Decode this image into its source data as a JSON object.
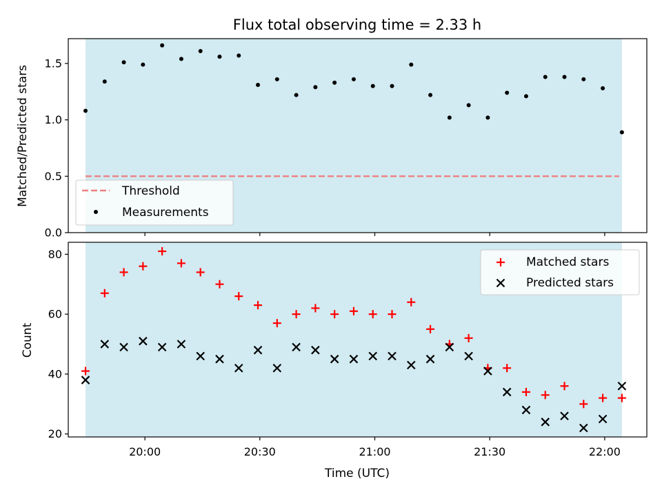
{
  "chart_data": {
    "title": "Flux total observing time = 2.33 h",
    "xlabel": "Time (UTC)",
    "shaded_color": "#add8e6",
    "x_tick_labels": [
      "20:00",
      "20:30",
      "21:00",
      "21:30",
      "22:00"
    ],
    "x_ticks": [
      "20:00",
      "20:30",
      "21:00",
      "21:30",
      "22:00"
    ],
    "xlim": [
      "19:40",
      "22:11"
    ],
    "shaded_range": [
      "19:44:30",
      "22:04:30"
    ],
    "x": [
      "19:44:30",
      "19:49:30",
      "19:54:30",
      "19:59:30",
      "20:04:30",
      "20:09:30",
      "20:14:30",
      "20:19:30",
      "20:24:30",
      "20:29:30",
      "20:34:30",
      "20:39:30",
      "20:44:30",
      "20:49:30",
      "20:54:30",
      "20:59:30",
      "21:04:30",
      "21:09:30",
      "21:14:30",
      "21:19:30",
      "21:24:30",
      "21:29:30",
      "21:34:30",
      "21:39:30",
      "21:44:30",
      "21:49:30",
      "21:54:30",
      "21:59:30",
      "22:04:30"
    ],
    "charts": [
      {
        "type": "scatter",
        "ylabel": "Matched/Predicted stars",
        "ylim": [
          0.0,
          1.72
        ],
        "y_ticks": [
          0.0,
          0.5,
          1.0,
          1.5
        ],
        "y_tick_labels": [
          "0.0",
          "0.5",
          "1.0",
          "1.5"
        ],
        "threshold": {
          "value": 0.5,
          "color": "#f08080"
        },
        "legend_position": "lower-left",
        "series": [
          {
            "name": "Measurements",
            "marker": "dot",
            "color": "#000000",
            "values": [
              1.08,
              1.34,
              1.51,
              1.49,
              1.66,
              1.54,
              1.61,
              1.56,
              1.57,
              1.31,
              1.36,
              1.22,
              1.29,
              1.33,
              1.36,
              1.3,
              1.3,
              1.49,
              1.22,
              1.02,
              1.13,
              1.02,
              1.24,
              1.21,
              1.38,
              1.38,
              1.36,
              1.28,
              0.89
            ]
          }
        ],
        "legend": [
          {
            "label": "Threshold",
            "style": "dashed-line",
            "color": "#f08080"
          },
          {
            "label": "Measurements",
            "style": "dot",
            "color": "#000000"
          }
        ]
      },
      {
        "type": "scatter",
        "ylabel": "Count",
        "ylim": [
          19,
          84
        ],
        "y_ticks": [
          20,
          40,
          60,
          80
        ],
        "y_tick_labels": [
          "20",
          "40",
          "60",
          "80"
        ],
        "legend_position": "upper-right",
        "series": [
          {
            "name": "Matched stars",
            "marker": "plus",
            "color": "#ff0000",
            "values": [
              41,
              67,
              74,
              76,
              81,
              77,
              74,
              70,
              66,
              63,
              57,
              60,
              62,
              60,
              61,
              60,
              60,
              64,
              55,
              50,
              52,
              42,
              42,
              34,
              33,
              36,
              30,
              32,
              32
            ]
          },
          {
            "name": "Predicted stars",
            "marker": "x",
            "color": "#000000",
            "values": [
              38,
              50,
              49,
              51,
              49,
              50,
              46,
              45,
              42,
              48,
              42,
              49,
              48,
              45,
              45,
              46,
              46,
              43,
              45,
              49,
              46,
              41,
              34,
              28,
              24,
              26,
              22,
              25,
              36
            ]
          }
        ]
      }
    ]
  }
}
